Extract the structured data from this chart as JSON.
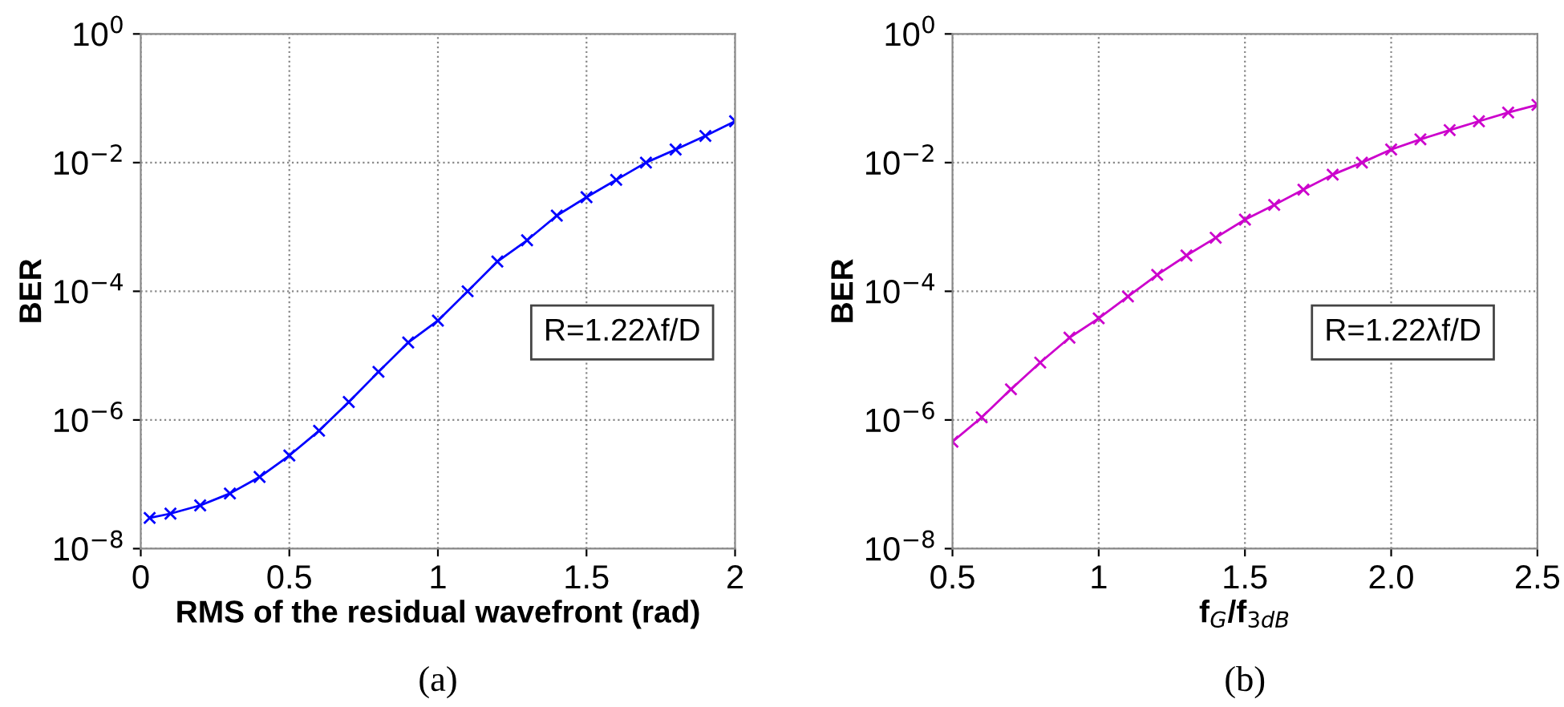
{
  "chart_data": [
    {
      "type": "line",
      "xlabel": "RMS of the residual wavefront (rad)",
      "ylabel": "BER",
      "log": "y",
      "grid": true,
      "marker": "cross",
      "line_style": "solid",
      "x": [
        0.03,
        0.1,
        0.2,
        0.3,
        0.4,
        0.5,
        0.6,
        0.7,
        0.8,
        0.9,
        1.0,
        1.1,
        1.2,
        1.3,
        1.4,
        1.5,
        1.6,
        1.7,
        1.8,
        1.9,
        2.0
      ],
      "series": [
        {
          "color": "#0000ff",
          "values": [
            3e-08,
            3.5e-08,
            4.7e-08,
            7.2e-08,
            1.3e-07,
            2.8e-07,
            6.8e-07,
            1.9e-06,
            5.6e-06,
            1.6e-05,
            3.5e-05,
            0.0001,
            0.00029,
            0.00062,
            0.0015,
            0.0029,
            0.0054,
            0.01,
            0.016,
            0.026,
            0.044
          ]
        }
      ],
      "xlim": [
        0,
        2
      ],
      "xticks": [
        0,
        0.5,
        1,
        1.5,
        2
      ],
      "ylim": [
        1e-08,
        1
      ],
      "yticks": [
        {
          "value": 1e-08,
          "label": "10$^{−8}$"
        },
        {
          "value": 1e-06,
          "label": "10$^{−6}$"
        },
        {
          "value": 0.0001,
          "label": "10$^{−4}$"
        },
        {
          "value": 0.01,
          "label": "10$^{−2}$"
        },
        {
          "value": 1,
          "label": "10$^{0}$"
        }
      ],
      "annotations": [
        "R=1.22λf/D",
        "(a)"
      ]
    },
    {
      "type": "line",
      "xlabel": "f$_{G}$/f$_{3dB}$",
      "ylabel": "BER",
      "log": "y",
      "grid": true,
      "marker": "cross",
      "line_style": "solid",
      "x": [
        0.5,
        0.6,
        0.7,
        0.8,
        0.9,
        1.0,
        1.1,
        1.2,
        1.3,
        1.4,
        1.5,
        1.6,
        1.7,
        1.8,
        1.9,
        2.0,
        2.1,
        2.2,
        2.3,
        2.4,
        2.5
      ],
      "series": [
        {
          "color": "#cc00cc",
          "values": [
            4.6e-07,
            1.1e-06,
            3e-06,
            7.8e-06,
            1.9e-05,
            3.8e-05,
            8.3e-05,
            0.00018,
            0.00036,
            0.00068,
            0.0013,
            0.0022,
            0.0038,
            0.0065,
            0.01,
            0.016,
            0.023,
            0.032,
            0.044,
            0.06,
            0.079
          ]
        }
      ],
      "xlim": [
        0.5,
        2.5
      ],
      "xticks": [
        0.5,
        1,
        1.5,
        {
          "value": 2,
          "label": "2.0"
        },
        2.5
      ],
      "ylim": [
        1e-08,
        1
      ],
      "yticks": [
        {
          "value": 1e-08,
          "label": "10$^{−8}$"
        },
        {
          "value": 1e-06,
          "label": "10$^{−6}$"
        },
        {
          "value": 0.0001,
          "label": "10$^{−4}$"
        },
        {
          "value": 0.01,
          "label": "10$^{−2}$"
        },
        {
          "value": 1,
          "label": "10$^{0}$"
        }
      ],
      "annotations": [
        "R=1.22λf/D",
        "(b)"
      ]
    }
  ]
}
